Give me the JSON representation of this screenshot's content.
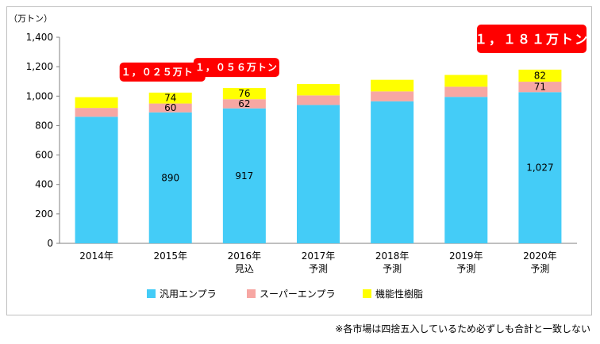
{
  "chart_data": {
    "type": "bar",
    "stacked": true,
    "y_unit": "（万トン）",
    "ylim": [
      0,
      1400
    ],
    "yticks": [
      0,
      200,
      400,
      600,
      800,
      1000,
      1200,
      1400
    ],
    "ytick_labels": [
      "0",
      "200",
      "400",
      "600",
      "800",
      "1,000",
      "1,200",
      "1,400"
    ],
    "categories": [
      [
        "2014年"
      ],
      [
        "2015年"
      ],
      [
        "2016年",
        "見込"
      ],
      [
        "2017年",
        "予測"
      ],
      [
        "2018年",
        "予測"
      ],
      [
        "2019年",
        "予測"
      ],
      [
        "2020年",
        "予測"
      ]
    ],
    "series": [
      {
        "name": "汎用エンプラ",
        "color": "#44ccf7",
        "values": [
          860,
          890,
          917,
          940,
          965,
          995,
          1027
        ],
        "labels": [
          "",
          "890",
          "917",
          "",
          "",
          "",
          "1,027"
        ]
      },
      {
        "name": "スーパーエンプラ",
        "color": "#f7a7a3",
        "values": [
          60,
          60,
          62,
          65,
          67,
          69,
          71
        ],
        "labels": [
          "",
          "60",
          "62",
          "",
          "",
          "",
          "71"
        ]
      },
      {
        "name": "機能性樹脂",
        "color": "#ffff00",
        "values": [
          73,
          74,
          76,
          77,
          79,
          80,
          82
        ],
        "labels": [
          "",
          "74",
          "76",
          "",
          "",
          "",
          "82"
        ]
      }
    ],
    "totals_callouts": [
      {
        "category_index": 1,
        "text": "１，０２５万トン",
        "size": "small"
      },
      {
        "category_index": 2,
        "text": "１，０５６万トン",
        "size": "small"
      },
      {
        "category_index": 6,
        "text": "１，１８１万トン",
        "size": "large"
      }
    ],
    "grid": false,
    "legend_position": "bottom",
    "callout_color": "#ff0000"
  },
  "footnote": "※各市場は四捨五入しているため必ずしも合計と一致しない"
}
